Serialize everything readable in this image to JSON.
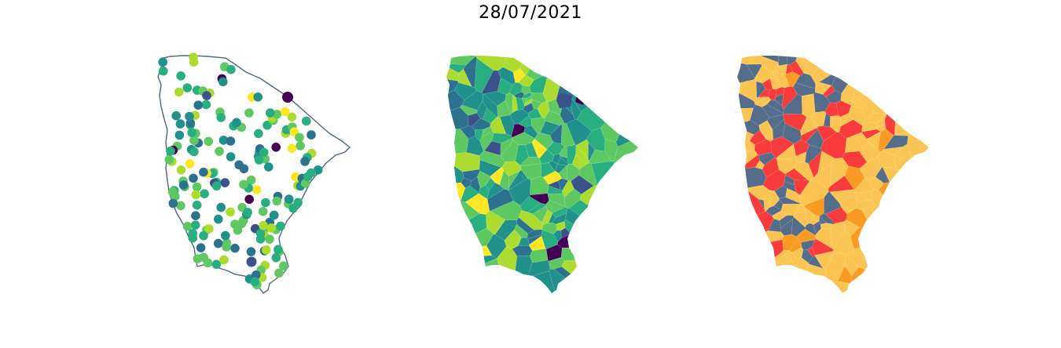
{
  "title": "28/07/2021",
  "colors": {
    "outline": "#4f6784",
    "viridis": [
      "#440154",
      "#3b528b",
      "#2c728e",
      "#21918c",
      "#28ae80",
      "#5ec962",
      "#addc30",
      "#fde725"
    ],
    "categories": [
      "#536d8a",
      "#fac552",
      "#fa9c24",
      "#f83c3c"
    ]
  },
  "panels": [
    {
      "name": "points-map",
      "type": "scatter-on-outline"
    },
    {
      "name": "municipality-choropleth",
      "type": "choropleth-continuous"
    },
    {
      "name": "category-choropleth",
      "type": "choropleth-categorical"
    }
  ]
}
